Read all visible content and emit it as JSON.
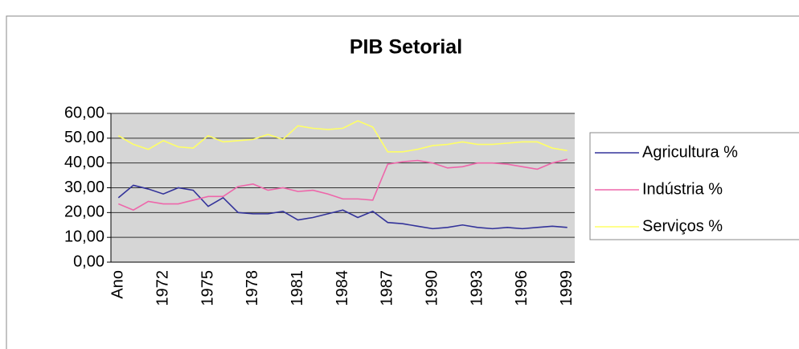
{
  "chart_data": {
    "type": "line",
    "title": "PIB Setorial",
    "categories": [
      "Ano",
      null,
      null,
      "1972",
      null,
      null,
      "1975",
      null,
      null,
      "1978",
      null,
      null,
      "1981",
      null,
      null,
      "1984",
      null,
      null,
      "1987",
      null,
      null,
      "1990",
      null,
      null,
      "1993",
      null,
      null,
      "1996",
      null,
      null,
      "1999"
    ],
    "series": [
      {
        "name": "Agricultura %",
        "color": "#33339a",
        "values": [
          26,
          31,
          29.5,
          27.5,
          30,
          29,
          22.5,
          26,
          20,
          19.5,
          19.5,
          20.5,
          17,
          18,
          19.5,
          21,
          18,
          20.5,
          16,
          15.5,
          14.5,
          13.5,
          14,
          15,
          14,
          13.5,
          14,
          13.5,
          14,
          14.5,
          14
        ]
      },
      {
        "name": "Indústria %",
        "color": "#ee66aa",
        "values": [
          23.5,
          21,
          24.5,
          23.5,
          23.5,
          25,
          26.5,
          26.5,
          30.5,
          31.5,
          29,
          30,
          28.5,
          29,
          27.5,
          25.5,
          25.5,
          25,
          39.5,
          40.5,
          41,
          40,
          38,
          38.5,
          40,
          40,
          39.5,
          38.5,
          37.5,
          40,
          41.5
        ]
      },
      {
        "name": "Serviços %",
        "color": "#ffff66",
        "values": [
          51,
          47.5,
          45.5,
          49,
          46.5,
          46,
          51,
          48.5,
          49,
          49.5,
          51.5,
          49.5,
          55,
          54,
          53.5,
          54,
          57,
          54.5,
          44.5,
          44.5,
          45.5,
          47,
          47.5,
          48.5,
          47.5,
          47.5,
          48,
          48.5,
          48.5,
          46,
          45
        ]
      }
    ],
    "ylim": [
      0,
      60
    ],
    "yticks": [
      {
        "value": 0,
        "label": "0,00"
      },
      {
        "value": 10,
        "label": "10,00"
      },
      {
        "value": 20,
        "label": "20,00"
      },
      {
        "value": 30,
        "label": "30,00"
      },
      {
        "value": 40,
        "label": "40,00"
      },
      {
        "value": 50,
        "label": "50,00"
      },
      {
        "value": 60,
        "label": "60,00"
      }
    ],
    "grid": true,
    "legend": "right"
  }
}
